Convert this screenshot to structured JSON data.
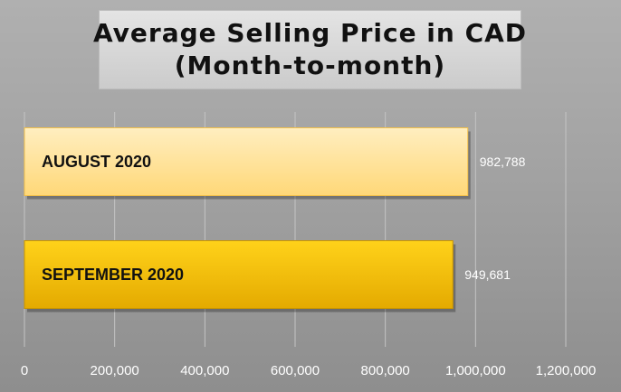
{
  "chart_data": {
    "type": "bar",
    "orientation": "horizontal",
    "title_lines": [
      "Average Selling Price in CAD",
      "(Month-to-month)"
    ],
    "categories": [
      "AUGUST 2020",
      "SEPTEMBER 2020"
    ],
    "values": [
      982788,
      949681
    ],
    "value_labels": [
      "982,788",
      "949,681"
    ],
    "xlim": [
      0,
      1200000
    ],
    "xticks": [
      0,
      200000,
      400000,
      600000,
      800000,
      1000000,
      1200000
    ],
    "xtick_labels": [
      "0",
      "200,000",
      "400,000",
      "600,000",
      "800,000",
      "1,000,000",
      "1,200,000"
    ],
    "grid": true,
    "legend": false,
    "colors": {
      "august_fill_top": "#ffeec0",
      "august_fill_bottom": "#ffd878",
      "august_border": "#f2c04a",
      "september_fill_top": "#ffd21a",
      "september_fill_bottom": "#e4aa00",
      "september_border": "#c99500",
      "background": "#a6a6a6",
      "gridline": "#c4c4c4",
      "tick_text": "#ffffff"
    }
  }
}
